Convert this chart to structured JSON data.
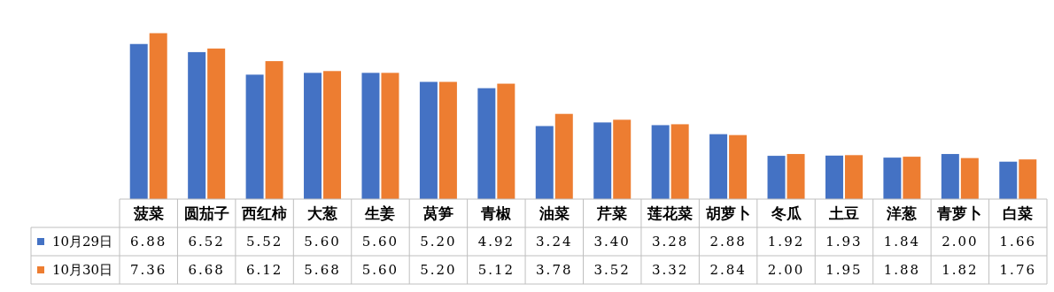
{
  "chart_data": {
    "type": "bar",
    "categories": [
      "菠菜",
      "圆茄子",
      "西红柿",
      "大葱",
      "生姜",
      "莴笋",
      "青椒",
      "油菜",
      "芹菜",
      "莲花菜",
      "胡萝卜",
      "冬瓜",
      "土豆",
      "洋葱",
      "青萝卜",
      "白菜"
    ],
    "series": [
      {
        "name": "10月29日",
        "color": "#4472c4",
        "values": [
          6.88,
          6.52,
          5.52,
          5.6,
          5.6,
          5.2,
          4.92,
          3.24,
          3.4,
          3.28,
          2.88,
          1.92,
          1.93,
          1.84,
          2.0,
          1.66
        ],
        "value_labels": [
          "6.88",
          "6.52",
          "5.52",
          "5.60",
          "5.60",
          "5.20",
          "4.92",
          "3.24",
          "3.40",
          "3.28",
          "2.88",
          "1.92",
          "1.93",
          "1.84",
          "2.00",
          "1.66"
        ]
      },
      {
        "name": "10月30日",
        "color": "#ed7d31",
        "values": [
          7.36,
          6.68,
          6.12,
          5.68,
          5.6,
          5.2,
          5.12,
          3.78,
          3.52,
          3.32,
          2.84,
          2.0,
          1.95,
          1.88,
          1.82,
          1.76
        ],
        "value_labels": [
          "7.36",
          "6.68",
          "6.12",
          "5.68",
          "5.60",
          "5.20",
          "5.12",
          "3.78",
          "3.52",
          "3.32",
          "2.84",
          "2.00",
          "1.95",
          "1.88",
          "1.82",
          "1.76"
        ]
      }
    ],
    "legend": "bottom"
  }
}
